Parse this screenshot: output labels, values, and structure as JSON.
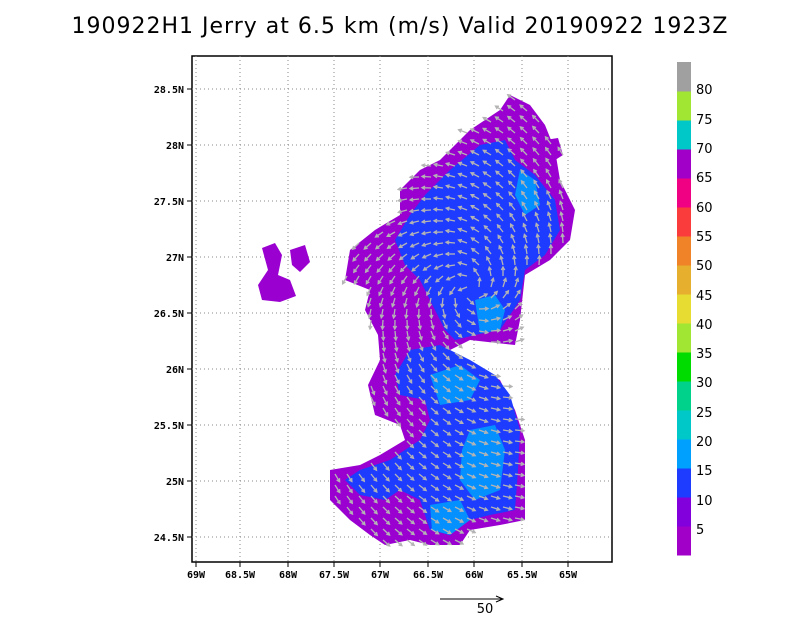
{
  "title": "190922H1 Jerry at 6.5 km (m/s) Valid 20190922  1923Z",
  "map": {
    "lon_ticks": [
      "69W",
      "68.5W",
      "68W",
      "67.5W",
      "67W",
      "66.5W",
      "66W",
      "65.5W",
      "65W"
    ],
    "lat_ticks": [
      "28.5N",
      "28N",
      "27.5N",
      "27N",
      "26.5N",
      "26N",
      "25.5N",
      "25N",
      "24.5N"
    ],
    "lon_range": [
      -69.1,
      -64.6
    ],
    "lat_range": [
      24.3,
      28.8
    ],
    "gridlines": true,
    "field": "wind speed at 6.5 km (m/s)"
  },
  "colorbar": {
    "labels": [
      "5",
      "10",
      "15",
      "20",
      "25",
      "30",
      "35",
      "40",
      "45",
      "50",
      "55",
      "60",
      "65",
      "70",
      "75",
      "80"
    ],
    "colors": [
      "#a000c8",
      "#8200dc",
      "#1e3cff",
      "#00a0ff",
      "#00c8c8",
      "#00d28c",
      "#00dc00",
      "#a0e632",
      "#e6dc32",
      "#e6af2d",
      "#f08228",
      "#fa3c3c",
      "#f00082",
      "#a000c8",
      "#00c8c8",
      "#a0e632",
      "#a0a0a0"
    ]
  },
  "vector_key": {
    "label": "50"
  }
}
